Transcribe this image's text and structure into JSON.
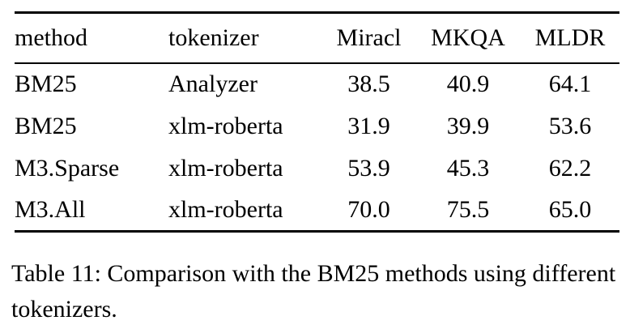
{
  "table": {
    "columns": [
      "method",
      "tokenizer",
      "Miracl",
      "MKQA",
      "MLDR"
    ],
    "rows": [
      {
        "method": "BM25",
        "tokenizer": "Analyzer",
        "miracl": "38.5",
        "mkqa": "40.9",
        "mldr": "64.1"
      },
      {
        "method": "BM25",
        "tokenizer": "xlm-roberta",
        "miracl": "31.9",
        "mkqa": "39.9",
        "mldr": "53.6"
      },
      {
        "method": "M3.Sparse",
        "tokenizer": "xlm-roberta",
        "miracl": "53.9",
        "mkqa": "45.3",
        "mldr": "62.2"
      },
      {
        "method": "M3.All",
        "tokenizer": "xlm-roberta",
        "miracl": "70.0",
        "mkqa": "75.5",
        "mldr": "65.0"
      }
    ]
  },
  "caption": "Table 11: Comparison with the BM25 methods using different tokenizers."
}
